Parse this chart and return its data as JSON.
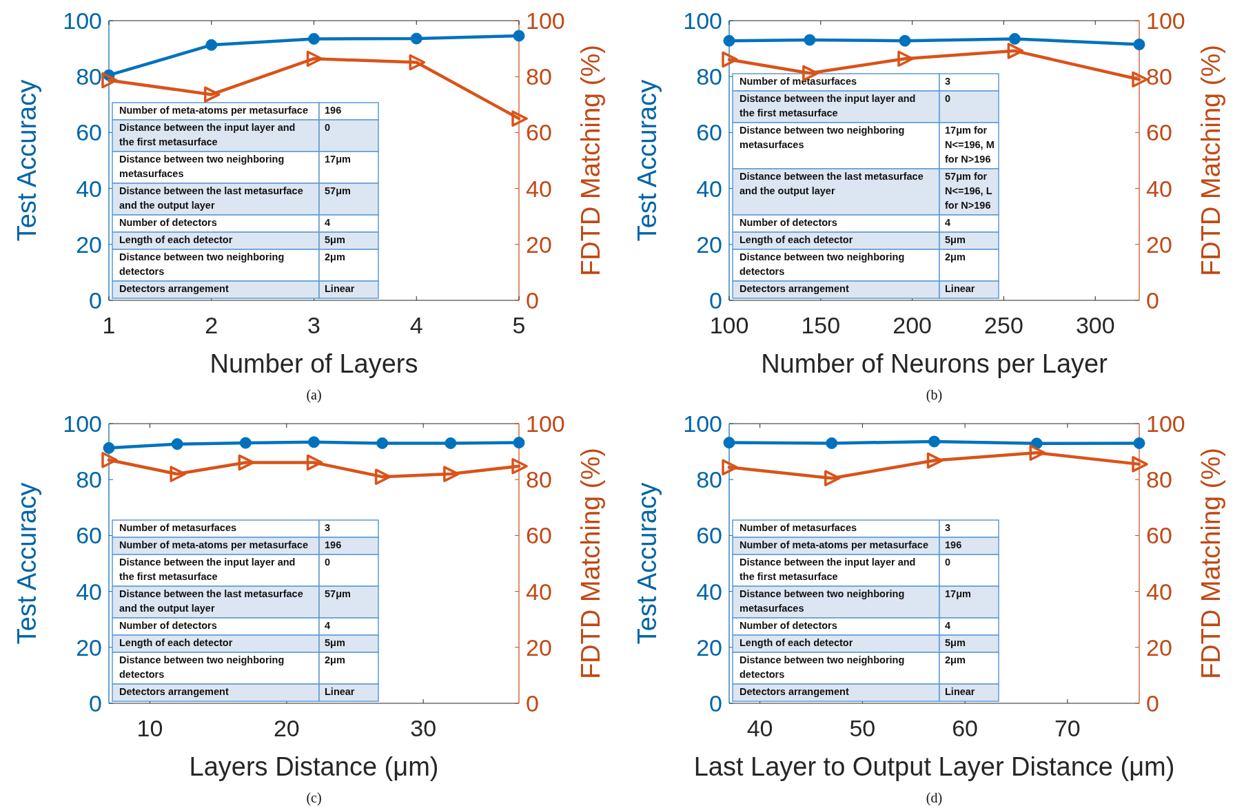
{
  "chart_data": [
    {
      "type": "line",
      "title": "(a)",
      "xlabel": "Number of Layers",
      "ylabel": "Test Accuracy",
      "y2label": "FDTD Matching (%)",
      "x": [
        1,
        2,
        3,
        4,
        5
      ],
      "xlim": [
        1,
        5
      ],
      "xticks": [
        1,
        2,
        3,
        4,
        5
      ],
      "ylim": [
        0,
        100
      ],
      "yticks": [
        0,
        20,
        40,
        60,
        80,
        100
      ],
      "y2lim": [
        0,
        100
      ],
      "y2ticks": [
        0,
        20,
        40,
        60,
        80,
        100
      ],
      "series": [
        {
          "color": "#0072bd",
          "marker": "circle",
          "values": [
            80.5,
            91.3,
            93.5,
            93.6,
            94.6
          ]
        },
        {
          "color": "#d95319",
          "marker": "triangle",
          "axis": "y2",
          "values": [
            78.7,
            73.6,
            86.4,
            85.1,
            65
          ]
        }
      ],
      "annotations": [
        "Number of meta-atoms per metasurface",
        "196",
        "Distance between the input layer and the first metasurface",
        "0",
        "Distance between two neighboring metasurfaces",
        "17μm",
        "Distance between the last metasurface and the output layer",
        "57μm",
        "Number of detectors",
        "4",
        "Length of each detector",
        "5μm",
        "Distance between two neighboring detectors",
        "2μm",
        "Detectors arrangement",
        "Linear"
      ]
    },
    {
      "type": "line",
      "title": "(b)",
      "xlabel": "Number of Neurons per Layer",
      "ylabel": "Test Accuracy",
      "y2label": "FDTD Matching (%)",
      "x": [
        100,
        144,
        196,
        256,
        324
      ],
      "xlim": [
        100,
        324
      ],
      "xticks": [
        100,
        150,
        200,
        250,
        300
      ],
      "ylim": [
        0,
        100
      ],
      "yticks": [
        0,
        20,
        40,
        60,
        80,
        100
      ],
      "y2lim": [
        0,
        100
      ],
      "y2ticks": [
        0,
        20,
        40,
        60,
        80,
        100
      ],
      "series": [
        {
          "color": "#0072bd",
          "marker": "circle",
          "values": [
            92.8,
            93.1,
            92.8,
            93.5,
            91.5
          ]
        },
        {
          "color": "#d95319",
          "marker": "triangle",
          "axis": "y2",
          "values": [
            86.1,
            81.2,
            86.4,
            89.2,
            79
          ]
        }
      ],
      "annotations": [
        "Number of metasurfaces",
        "3",
        "Distance between the input layer and the first metasurface",
        "0",
        "Distance between two neighboring metasurfaces",
        "17μm for N<=196, M for N>196",
        "Distance between the last metasurface and the output layer",
        "57μm for N<=196, L for N>196",
        "Number of detectors",
        "4",
        "Length of each detector",
        "5μm",
        "Distance between two neighboring detectors",
        "2μm",
        "Detectors arrangement",
        "Linear"
      ]
    },
    {
      "type": "line",
      "title": "(c)",
      "xlabel": "Layers Distance (μm)",
      "ylabel": "Test Accuracy",
      "y2label": "FDTD Matching (%)",
      "x": [
        7,
        12,
        17,
        22,
        27,
        32,
        37
      ],
      "xlim": [
        7,
        37
      ],
      "xticks": [
        10,
        20,
        30
      ],
      "ylim": [
        0,
        100
      ],
      "yticks": [
        0,
        20,
        40,
        60,
        80,
        100
      ],
      "y2lim": [
        0,
        100
      ],
      "y2ticks": [
        0,
        20,
        40,
        60,
        80,
        100
      ],
      "series": [
        {
          "color": "#0072bd",
          "marker": "circle",
          "values": [
            91.3,
            92.7,
            93.1,
            93.4,
            93,
            93,
            93.2
          ]
        },
        {
          "color": "#d95319",
          "marker": "triangle",
          "axis": "y2",
          "values": [
            87,
            82,
            86.1,
            86.1,
            81,
            82,
            84.8
          ]
        }
      ],
      "annotations": [
        "Number of metasurfaces",
        "3",
        "Number of meta-atoms per metasurface",
        "196",
        "Distance between the input layer and the first metasurface",
        "0",
        "Distance between the last metasurface and the output layer",
        "57μm",
        "Number of detectors",
        "4",
        "Length of each detector",
        "5μm",
        "Distance between two neighboring detectors",
        "2μm",
        "Detectors arrangement",
        "Linear"
      ]
    },
    {
      "type": "line",
      "title": "(d)",
      "xlabel": "Last Layer to Output Layer Distance (μm)",
      "ylabel": "Test Accuracy",
      "y2label": "FDTD Matching (%)",
      "x": [
        37,
        47,
        57,
        67,
        77
      ],
      "xlim": [
        37,
        77
      ],
      "xticks": [
        40,
        50,
        60,
        70
      ],
      "ylim": [
        0,
        100
      ],
      "yticks": [
        0,
        20,
        40,
        60,
        80,
        100
      ],
      "y2lim": [
        0,
        100
      ],
      "y2ticks": [
        0,
        20,
        40,
        60,
        80,
        100
      ],
      "series": [
        {
          "color": "#0072bd",
          "marker": "circle",
          "values": [
            93.2,
            93,
            93.6,
            92.9,
            93
          ]
        },
        {
          "color": "#d95319",
          "marker": "triangle",
          "axis": "y2",
          "values": [
            84.4,
            80.5,
            86.8,
            89.6,
            85.5
          ]
        }
      ],
      "annotations": [
        "Number of metasurfaces",
        "3",
        "Number of meta-atoms per metasurface",
        "196",
        "Distance between the input layer and the first metasurface",
        "0",
        "Distance between two neighboring metasurfaces",
        "17μm",
        "Number of detectors",
        "4",
        "Length of each detector",
        "5μm",
        "Distance between two neighboring detectors",
        "2μm",
        "Detectors arrangement",
        "Linear"
      ]
    }
  ]
}
